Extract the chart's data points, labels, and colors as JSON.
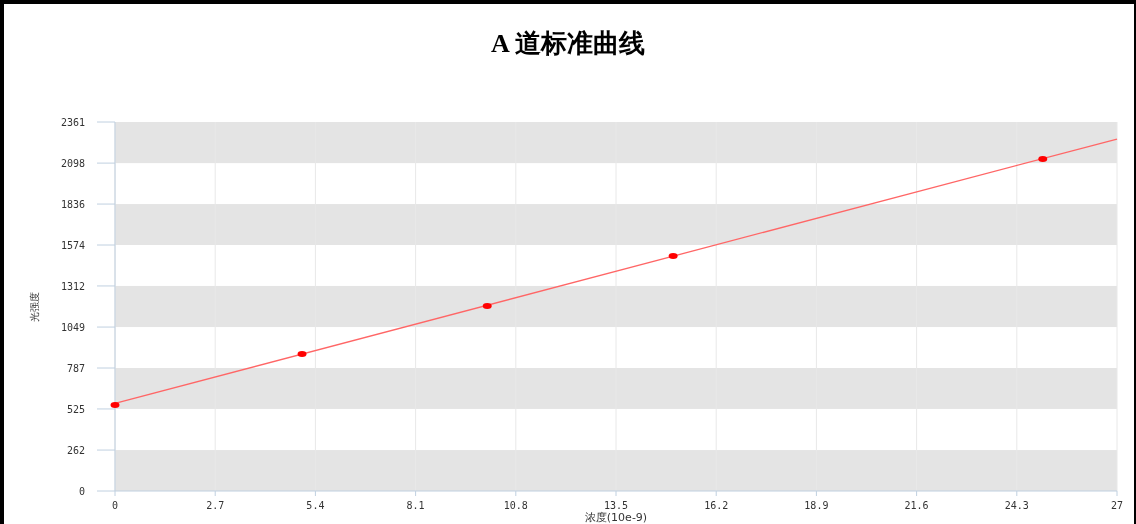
{
  "chart_data": {
    "type": "scatter",
    "title": "A 道标准曲线",
    "xlabel": "浓度(10e-9)",
    "ylabel": "光强度",
    "xlim": [
      0,
      27
    ],
    "xticks": [
      0,
      2.7,
      5.4,
      8.1,
      10.8,
      13.5,
      16.2,
      18.9,
      21.6,
      24.3,
      27
    ],
    "ylim": [
      0,
      2361
    ],
    "yticks": [
      0,
      262,
      525,
      787,
      1049,
      1312,
      1574,
      1836,
      2098,
      2361
    ],
    "grid": true,
    "series": [
      {
        "type": "scatter",
        "color": "#ff0000",
        "marker": "circle",
        "x": [
          0,
          5.04,
          10.03,
          15.04,
          25.0
        ],
        "values": [
          550,
          877,
          1184,
          1504,
          2124
        ]
      },
      {
        "type": "line",
        "color": "#ff6666",
        "marker": "none",
        "x": [
          0,
          27
        ],
        "values": [
          560,
          2252
        ]
      }
    ]
  }
}
